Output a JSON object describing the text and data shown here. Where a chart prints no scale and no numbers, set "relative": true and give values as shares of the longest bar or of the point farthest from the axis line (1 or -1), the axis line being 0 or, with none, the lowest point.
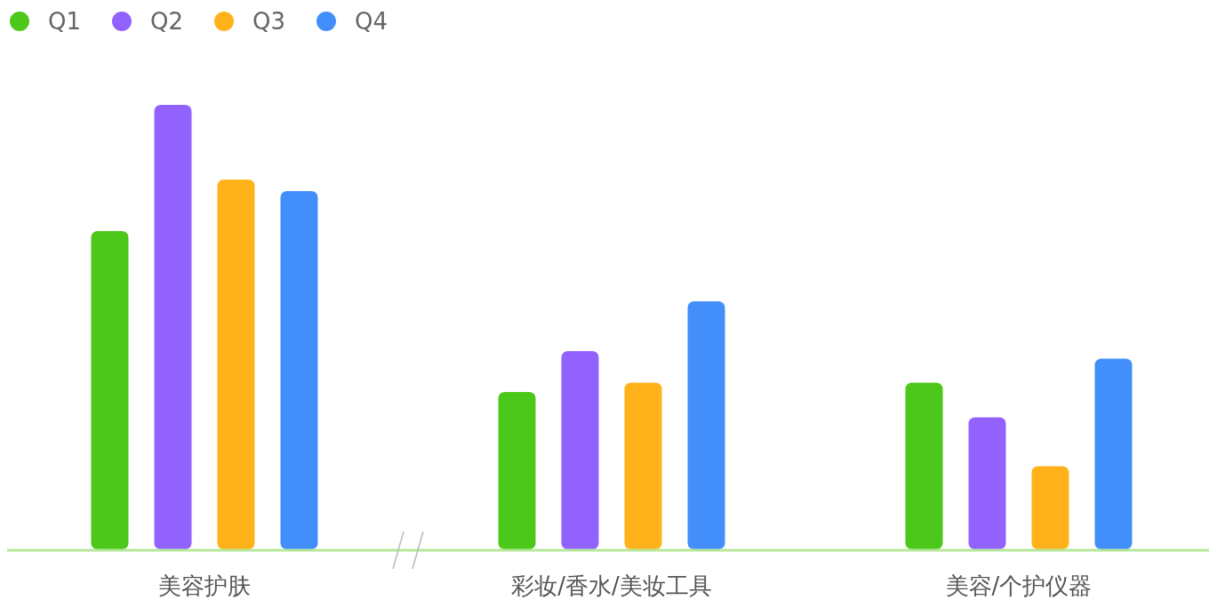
{
  "chart_data": {
    "type": "bar",
    "relative": true,
    "categories": [
      "美容护肤",
      "彩妆/香水/美妆工具",
      "美容/个护仪器"
    ],
    "legend": "top left",
    "series": [
      {
        "name": "Q1",
        "color": "#4cc81a",
        "values": [
          0.716,
          0.354,
          0.375
        ]
      },
      {
        "name": "Q2",
        "color": "#9262ff",
        "values": [
          1,
          0.446,
          0.297
        ]
      },
      {
        "name": "Q3",
        "color": "#ffb21a",
        "values": [
          0.832,
          0.375,
          0.187
        ]
      },
      {
        "name": "Q4",
        "color": "#428ffc",
        "values": [
          0.806,
          0.558,
          0.429
        ]
      }
    ]
  }
}
